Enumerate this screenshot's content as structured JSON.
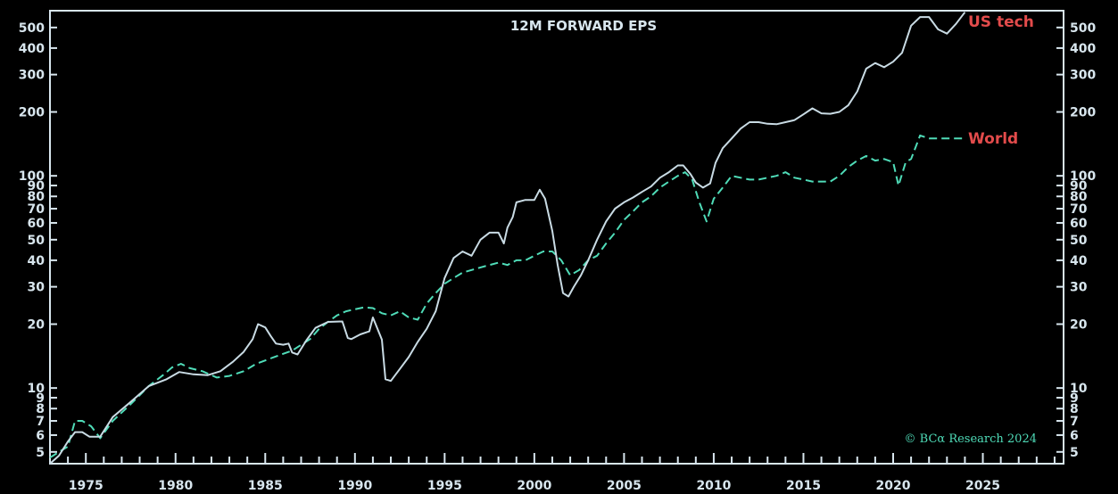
{
  "chart_data": {
    "type": "line",
    "title": "12M FORWARD EPS",
    "xlabel": "",
    "ylabel": "",
    "y_scale": "log",
    "xlim": [
      1973,
      2029.5
    ],
    "ylim": [
      4.4,
      600
    ],
    "grid": false,
    "x_tick_labels": [
      "1975",
      "1980",
      "1985",
      "1990",
      "1995",
      "2000",
      "2005",
      "2010",
      "2015",
      "2020",
      "2025"
    ],
    "x_tick_values": [
      1975,
      1980,
      1985,
      1990,
      1995,
      2000,
      2005,
      2010,
      2015,
      2020,
      2025
    ],
    "y_tick_labels": [
      "5",
      "6",
      "7",
      "8",
      "9",
      "10",
      "20",
      "30",
      "40",
      "50",
      "60",
      "70",
      "80",
      "90",
      "100",
      "200",
      "300",
      "400",
      "500"
    ],
    "y_tick_values": [
      5,
      6,
      7,
      8,
      9,
      10,
      20,
      30,
      40,
      50,
      60,
      70,
      80,
      90,
      100,
      200,
      300,
      400,
      500
    ],
    "series": [
      {
        "name": "US tech",
        "color": "#c9dbe4",
        "style": "solid",
        "x": [
          1973.0,
          1973.5,
          1974.0,
          1974.4,
          1974.8,
          1975.2,
          1975.8,
          1976.5,
          1977.5,
          1978.5,
          1979.5,
          1980.2,
          1981.0,
          1981.8,
          1982.5,
          1983.2,
          1983.8,
          1984.3,
          1984.6,
          1985.0,
          1985.3,
          1985.6,
          1986.0,
          1986.3,
          1986.5,
          1986.8,
          1987.3,
          1987.8,
          1988.5,
          1989.3,
          1989.6,
          1989.8,
          1990.3,
          1990.8,
          1991.0,
          1991.5,
          1991.7,
          1992.0,
          1992.5,
          1993.0,
          1993.5,
          1994.0,
          1994.5,
          1995.0,
          1995.5,
          1996.0,
          1996.5,
          1997.0,
          1997.5,
          1998.0,
          1998.3,
          1998.5,
          1998.8,
          1999.0,
          1999.5,
          2000.0,
          2000.3,
          2000.6,
          2001.0,
          2001.3,
          2001.6,
          2001.9,
          2002.2,
          2002.6,
          2003.0,
          2003.5,
          2004.0,
          2004.5,
          2005.0,
          2005.5,
          2006.0,
          2006.5,
          2007.0,
          2007.5,
          2008.0,
          2008.3,
          2008.7,
          2009.0,
          2009.4,
          2009.8,
          2010.1,
          2010.5,
          2011.0,
          2011.5,
          2012.0,
          2012.5,
          2013.0,
          2013.5,
          2014.0,
          2014.5,
          2015.0,
          2015.5,
          2016.0,
          2016.5,
          2017.0,
          2017.5,
          2018.0,
          2018.5,
          2019.0,
          2019.5,
          2020.0,
          2020.5,
          2021.0,
          2021.5,
          2022.0,
          2022.5,
          2023.0,
          2023.5,
          2024.0
        ],
        "values": [
          4.4,
          4.8,
          5.6,
          6.2,
          6.2,
          5.9,
          5.9,
          7.3,
          8.6,
          10.2,
          11.0,
          11.9,
          11.6,
          11.5,
          12.0,
          13.3,
          14.8,
          17.0,
          20.0,
          19.3,
          17.6,
          16.2,
          16.0,
          16.2,
          14.7,
          14.4,
          16.8,
          19.2,
          20.5,
          20.6,
          17.2,
          17.0,
          17.9,
          18.5,
          21.5,
          16.9,
          11.0,
          10.8,
          12.3,
          14.0,
          16.5,
          19.0,
          23.0,
          33.0,
          41.0,
          44.0,
          42.0,
          50.0,
          54.0,
          54.0,
          48.0,
          57.0,
          64.0,
          75.0,
          77.0,
          77.0,
          86.0,
          78.0,
          55.0,
          38.0,
          28.0,
          27.0,
          30.0,
          34.0,
          40.0,
          50.0,
          61.0,
          70.0,
          75.0,
          79.0,
          84.0,
          89.0,
          98.0,
          104.0,
          112.0,
          112.0,
          102.0,
          93.0,
          88.0,
          92.0,
          115.0,
          135.0,
          150.0,
          167.0,
          179.0,
          179.0,
          176.0,
          175.0,
          179.0,
          183.0,
          195.0,
          208.0,
          197.0,
          196.0,
          200.0,
          215.0,
          250.0,
          320.0,
          340.0,
          325.0,
          345.0,
          380.0,
          510.0,
          560.0,
          560.0,
          490.0,
          468.0,
          520.0,
          590.0
        ]
      },
      {
        "name": "World",
        "color": "#4fdcb8",
        "style": "dashed",
        "x": [
          1973.0,
          1973.5,
          1974.0,
          1974.4,
          1974.8,
          1975.3,
          1975.8,
          1976.5,
          1977.5,
          1978.5,
          1979.3,
          1979.8,
          1980.3,
          1980.8,
          1981.5,
          1982.3,
          1983.0,
          1983.8,
          1984.5,
          1985.5,
          1986.5,
          1987.5,
          1988.0,
          1988.5,
          1989.0,
          1989.5,
          1990.0,
          1990.5,
          1991.0,
          1991.5,
          1992.0,
          1992.5,
          1993.0,
          1993.5,
          1994.0,
          1994.5,
          1995.0,
          1995.5,
          1996.0,
          1996.5,
          1997.0,
          1997.5,
          1998.0,
          1998.5,
          1999.0,
          1999.5,
          2000.0,
          2000.5,
          2001.0,
          2001.5,
          2002.0,
          2002.5,
          2003.0,
          2003.5,
          2004.0,
          2004.5,
          2005.0,
          2005.5,
          2006.0,
          2006.5,
          2007.0,
          2007.5,
          2008.0,
          2008.4,
          2008.8,
          2009.2,
          2009.6,
          2010.0,
          2010.5,
          2011.0,
          2011.5,
          2012.0,
          2012.5,
          2013.0,
          2013.5,
          2014.0,
          2014.5,
          2015.0,
          2015.5,
          2016.0,
          2016.5,
          2017.0,
          2017.5,
          2018.0,
          2018.5,
          2019.0,
          2019.5,
          2020.0,
          2020.3,
          2020.7,
          2021.0,
          2021.5,
          2022.0,
          2022.5,
          2023.0,
          2023.5,
          2024.0
        ],
        "values": [
          4.7,
          5.0,
          5.3,
          7.0,
          7.0,
          6.6,
          5.8,
          7.0,
          8.4,
          10.2,
          11.5,
          12.5,
          13.0,
          12.4,
          12.0,
          11.2,
          11.4,
          12.0,
          13.0,
          14.0,
          15.0,
          17.0,
          19.0,
          20.5,
          22.0,
          23.0,
          23.5,
          24.0,
          23.8,
          22.5,
          22.0,
          23.0,
          21.5,
          21.0,
          25.0,
          28.0,
          31.0,
          33.0,
          35.0,
          36.0,
          37.0,
          38.0,
          39.0,
          38.0,
          40.0,
          40.0,
          42.0,
          44.0,
          44.0,
          40.0,
          34.0,
          36.0,
          40.0,
          42.0,
          48.0,
          54.0,
          62.0,
          68.0,
          75.0,
          80.0,
          88.0,
          94.0,
          100.0,
          104.0,
          96.0,
          75.0,
          61.0,
          78.0,
          88.0,
          100.0,
          98.0,
          96.0,
          96.0,
          98.0,
          100.0,
          104.0,
          98.0,
          96.0,
          94.0,
          94.0,
          94.0,
          100.0,
          110.0,
          118.0,
          124.0,
          118.0,
          120.0,
          116.0,
          90.0,
          116.0,
          120.0,
          155.0,
          150.0,
          150.0,
          150.0,
          150.0,
          150.0
        ]
      }
    ],
    "annotations": [
      "US tech",
      "World",
      "© BCα Research 2024"
    ]
  },
  "colors": {
    "background": "#000000",
    "axis": "#d8e6ee",
    "label_red": "#e24b4b",
    "credit": "#4fdcb8"
  }
}
